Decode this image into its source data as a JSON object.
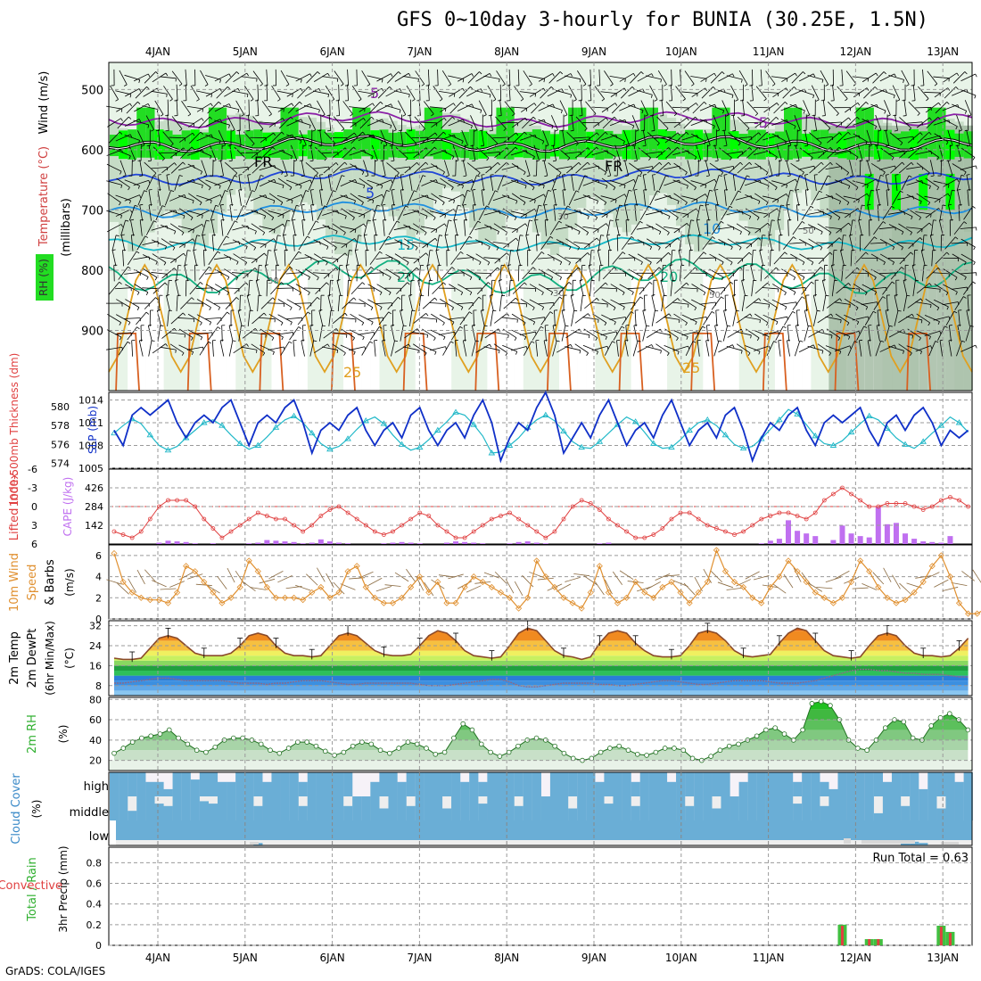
{
  "title": "GFS 0~10day 3-hourly for BUNIA (30.25E, 1.5N)",
  "credit": "GrADS: COLA/IGES",
  "colors": {
    "rh_light": "#e8f4e8",
    "rh_mid": "#c6dcc6",
    "rh_dark": "#9fb89f",
    "rh_bright": "#22dd22",
    "rh_neon": "#00ff00",
    "temp_purple": "#8a1fa6",
    "temp_blue": "#2046d8",
    "temp_lightblue": "#1e8fe0",
    "temp_cyan": "#15b8c8",
    "temp_green": "#12b080",
    "temp_orange": "#e0a020",
    "temp_darkorange": "#d86020",
    "freeze": "#000000",
    "slp": "#1030c8",
    "thick": "#20b8c8",
    "li": "#e04040",
    "cape": "#c070f0",
    "wind": "#e09030",
    "barb": "#8a6a40",
    "t2m": "#8a4a2a",
    "dewpt": "#8a6a8a",
    "rh2m": "#30b030",
    "cloud": "#6aaed6",
    "cloud_bg": "#eeeeee",
    "rain": "#40c040",
    "conv": "#e04040"
  },
  "chart_data": [
    {
      "panel": "upper-air",
      "type": "heatmap",
      "ylabel_parts": [
        "RH (%)",
        "Temperature (°C)",
        "Wind (m/s)"
      ],
      "yaxis_title": "(millibars)",
      "y_ticks": [
        500,
        600,
        700,
        800,
        900
      ],
      "ylim": [
        1000,
        455
      ],
      "x_labels": [
        "4JAN",
        "5JAN",
        "6JAN",
        "7JAN",
        "8JAN",
        "9JAN",
        "10JAN",
        "11JAN",
        "12JAN",
        "13JAN"
      ],
      "contours": [
        {
          "label": "-5",
          "level_mb": 550,
          "color": "temp_purple"
        },
        {
          "label": "FR",
          "level_mb": 590,
          "color": "freeze"
        },
        {
          "label": "5",
          "level_mb": 645,
          "color": "temp_blue"
        },
        {
          "label": "10",
          "level_mb": 700,
          "color": "temp_lightblue"
        },
        {
          "label": "15",
          "level_mb": 755,
          "color": "temp_cyan"
        },
        {
          "label": "20",
          "level_mb": 810,
          "color": "temp_green"
        },
        {
          "label": "25",
          "level_mb": 880,
          "color": "temp_orange"
        }
      ],
      "contour_labels_shown": [
        "5",
        "FR",
        "FR",
        "5",
        "15",
        "10",
        "20",
        "20",
        "-5",
        "25",
        "25"
      ],
      "rh_labels_shown": [
        "30",
        "30",
        "50",
        "30",
        "50"
      ]
    },
    {
      "panel": "slp-thickness",
      "type": "line",
      "ylabel_left": "1000-500mb Thickness (dm)",
      "ylabel_right": "SLP (mb)",
      "left_ticks": [
        574,
        576,
        578,
        580
      ],
      "right_ticks": [
        1005,
        1008,
        1011,
        1014
      ],
      "left_lim": [
        573.5,
        581.5
      ],
      "right_lim": [
        1005,
        1015
      ],
      "slp": [
        1010,
        1008,
        1012,
        1013,
        1012,
        1013,
        1014,
        1011,
        1009,
        1011,
        1012,
        1011,
        1013,
        1014,
        1011,
        1008,
        1011,
        1012,
        1011,
        1013,
        1014,
        1011,
        1007,
        1010,
        1011,
        1010,
        1012,
        1013,
        1010,
        1008,
        1010,
        1011,
        1009,
        1012,
        1013,
        1010,
        1008,
        1010,
        1011,
        1009,
        1012,
        1014,
        1011,
        1006,
        1009,
        1011,
        1010,
        1013,
        1015,
        1012,
        1007,
        1009,
        1011,
        1009,
        1012,
        1014,
        1011,
        1008,
        1010,
        1011,
        1009,
        1012,
        1014,
        1011,
        1008,
        1010,
        1011,
        1009,
        1012,
        1013,
        1010,
        1006,
        1009,
        1011,
        1010,
        1012,
        1013,
        1010,
        1008,
        1011,
        1012,
        1011,
        1012,
        1013,
        1010,
        1008,
        1011,
        1012,
        1010,
        1012,
        1013,
        1011,
        1008,
        1010,
        1009,
        1010
      ],
      "thickness": [
        577.2,
        578,
        578.7,
        578.2,
        577,
        575.9,
        575.4,
        575.8,
        576.7,
        577.5,
        578.3,
        578.6,
        578,
        577,
        576.1,
        575.5,
        575.9,
        576.8,
        577.8,
        578.6,
        579,
        578.3,
        577.2,
        576.1,
        575.5,
        575.8,
        576.6,
        577.6,
        578.5,
        578.9,
        578.2,
        577,
        576,
        575.4,
        575.7,
        576.5,
        577.5,
        578.4,
        579.4,
        579.1,
        578.1,
        576.9,
        575.1,
        575.2,
        575.9,
        576.7,
        577.8,
        578.6,
        579.1,
        578.5,
        577.4,
        576.3,
        575.7,
        575.6,
        576.3,
        577.2,
        578.1,
        578.9,
        578.4,
        577.3,
        576.1,
        575.6,
        575.7,
        576.5,
        577.5,
        578.3,
        578.6,
        578,
        577,
        576,
        575.6,
        575.8,
        576.6,
        577.6,
        578.6,
        579.7,
        579.2,
        578.1,
        576.9,
        576.1,
        575.9,
        576.4,
        577.3,
        578.2,
        579,
        578.6,
        577.7,
        576.7,
        576,
        575.6,
        576.3,
        577.2,
        578,
        578.9,
        578.3,
        577.3
      ]
    },
    {
      "panel": "lifted-index-cape",
      "type": "bar",
      "ylabel_left": "Lifted Index",
      "ylabel_right": "CAPE (J/kg)",
      "left_ticks": [
        "-6",
        "-3",
        "0",
        "3",
        "6"
      ],
      "right_ticks": [
        142,
        284,
        426
      ],
      "cape": [
        0,
        0,
        0,
        0,
        0,
        10,
        25,
        20,
        15,
        5,
        0,
        5,
        0,
        0,
        0,
        5,
        10,
        30,
        25,
        20,
        15,
        5,
        10,
        35,
        20,
        10,
        5,
        0,
        0,
        0,
        5,
        10,
        15,
        10,
        5,
        0,
        0,
        10,
        20,
        15,
        10,
        5,
        0,
        0,
        5,
        15,
        20,
        10,
        5,
        0,
        0,
        0,
        0,
        0,
        5,
        10,
        0,
        0,
        0,
        0,
        0,
        0,
        0,
        0,
        0,
        0,
        0,
        0,
        0,
        0,
        0,
        0,
        5,
        25,
        40,
        180,
        100,
        80,
        60,
        0,
        30,
        140,
        80,
        60,
        50,
        280,
        150,
        160,
        80,
        40,
        20,
        15,
        10,
        60,
        0,
        0
      ],
      "li": [
        4,
        4.5,
        5,
        4,
        2,
        0,
        -1,
        -1,
        -1,
        0,
        2,
        3.5,
        5,
        4,
        3,
        2,
        1,
        1.5,
        2,
        2,
        3,
        4,
        3,
        1.5,
        0.5,
        0,
        1,
        2,
        3,
        4,
        4.5,
        4,
        3,
        2,
        1,
        1.5,
        3,
        4,
        5,
        5,
        4,
        3,
        2,
        1.5,
        1,
        2,
        3,
        4,
        5,
        4,
        2,
        0,
        -1,
        -0.5,
        0.5,
        2,
        3,
        4,
        5,
        5,
        4.5,
        3.5,
        2,
        1,
        1,
        2,
        3,
        3.5,
        4,
        4.5,
        4,
        3,
        2,
        1.5,
        1,
        1,
        1.5,
        2,
        1,
        -1,
        -2,
        -3,
        -2,
        -1,
        0,
        0,
        -0.5,
        -0.5,
        -0.5,
        0,
        0.5,
        0,
        -1,
        -1.5,
        -1,
        0
      ]
    },
    {
      "panel": "10m-wind",
      "type": "line",
      "ylabel_parts": [
        "10m Wind",
        "Speed",
        "& Barbs"
      ],
      "yunit": "(m/s)",
      "y_ticks": [
        0,
        2,
        4,
        6
      ],
      "ylim": [
        0,
        7
      ],
      "speed": [
        6.2,
        3.5,
        2.5,
        2,
        1.8,
        1.8,
        1.5,
        2.5,
        5,
        4.5,
        3.5,
        2.5,
        1.5,
        2,
        3,
        5.5,
        4.5,
        3,
        2,
        2,
        2,
        1.8,
        2.5,
        3,
        2,
        2.5,
        4.5,
        5,
        3,
        2,
        1.5,
        1.5,
        2,
        3,
        4,
        2.5,
        3.5,
        1.5,
        1.5,
        3,
        4,
        3.5,
        3,
        2.5,
        2,
        1,
        2,
        5.5,
        4,
        3,
        2,
        1.5,
        1,
        2.5,
        5,
        2.5,
        1.5,
        2,
        3.5,
        2.5,
        2,
        3,
        3.5,
        2.5,
        1.5,
        2.5,
        3.5,
        6.5,
        4.5,
        3.5,
        3,
        2,
        1.5,
        3,
        4,
        5.5,
        4.5,
        3.5,
        2.5,
        2,
        1.5,
        2,
        3.5,
        5.5,
        4.5,
        3,
        2,
        1.5,
        1.8,
        2.5,
        3.5,
        5,
        6,
        4,
        1.5,
        0.5,
        0.5,
        1,
        2,
        4
      ]
    },
    {
      "panel": "2m-temp-dewpt",
      "type": "area",
      "ylabel_parts": [
        "2m Temp",
        "2m DewPt",
        "(6hr Min/Max)"
      ],
      "yunit": "(°C)",
      "y_ticks": [
        8,
        16,
        24,
        32
      ],
      "ylim": [
        4,
        34
      ],
      "temp_2m": [
        19,
        18.5,
        18.5,
        19,
        23,
        27,
        28,
        27,
        24,
        21,
        20,
        20,
        20,
        21,
        24,
        28,
        29,
        28,
        24,
        21,
        20,
        20,
        19.5,
        20,
        24,
        28,
        29,
        28,
        25,
        22,
        20.5,
        20,
        20,
        20.5,
        24,
        28,
        30,
        29,
        26,
        22,
        20,
        19.5,
        19,
        19.5,
        24,
        29,
        31,
        30,
        26,
        22,
        20,
        19.5,
        18.5,
        19.5,
        25,
        29,
        30,
        29,
        25,
        22,
        20,
        19.5,
        19.5,
        20,
        24,
        29,
        30,
        29,
        26,
        22,
        20,
        19.5,
        20,
        20.5,
        25,
        29,
        31,
        30,
        26,
        22,
        20,
        19.5,
        19,
        19.5,
        24,
        28,
        29,
        28,
        24,
        21,
        20,
        20,
        19.5,
        20,
        23,
        27,
        28,
        27,
        23,
        21,
        20,
        19,
        19,
        18.5,
        18,
        18.5,
        24
      ],
      "dewpt_2m": [
        9,
        9,
        9.5,
        10,
        10.5,
        11,
        11,
        10.5,
        10,
        10,
        10,
        10,
        10,
        9.5,
        9,
        9,
        9,
        8.5,
        9,
        9,
        9.5,
        10,
        10,
        10,
        9.5,
        9,
        8.5,
        8.5,
        9,
        9,
        9,
        9,
        9,
        9,
        8.5,
        8,
        8,
        8,
        8.5,
        9,
        9.5,
        10,
        10.5,
        10.5,
        9.5,
        8,
        7.5,
        7.5,
        8,
        8.5,
        9,
        9,
        9,
        9,
        8.5,
        8.5,
        8,
        8,
        8.5,
        9,
        9.5,
        10,
        10,
        9.5,
        9,
        8.5,
        8.5,
        9,
        9.5,
        10,
        10,
        10,
        10,
        9.5,
        9,
        9,
        9,
        9.5,
        10,
        11,
        12,
        13,
        14,
        14.5,
        14.5,
        14,
        14,
        13.5,
        13,
        13,
        12.5,
        12.5,
        12.5,
        12,
        11.5,
        11.5,
        11.5,
        12,
        12,
        12.5,
        13,
        13
      ]
    },
    {
      "panel": "2m-rh",
      "type": "area",
      "ylabel": "2m RH",
      "yunit": "(%)",
      "y_ticks": [
        20,
        40,
        60,
        80
      ],
      "ylim": [
        10,
        82
      ],
      "rh_2m": [
        27,
        32,
        38,
        42,
        44,
        46,
        50,
        42,
        36,
        30,
        28,
        33,
        40,
        42,
        42,
        40,
        36,
        30,
        27,
        32,
        38,
        38,
        34,
        29,
        25,
        28,
        34,
        38,
        36,
        30,
        27,
        32,
        38,
        36,
        32,
        26,
        28,
        42,
        56,
        50,
        36,
        28,
        24,
        28,
        34,
        40,
        42,
        40,
        34,
        27,
        22,
        20,
        22,
        28,
        32,
        34,
        30,
        26,
        25,
        28,
        32,
        32,
        30,
        22,
        20,
        24,
        30,
        34,
        36,
        40,
        44,
        50,
        52,
        46,
        40,
        50,
        76,
        78,
        74,
        60,
        40,
        32,
        30,
        40,
        52,
        60,
        58,
        42,
        40,
        54,
        62,
        66,
        60,
        50
      ],
      "extra_y_tick": 80
    },
    {
      "panel": "cloud-cover",
      "type": "bar",
      "ylabel": "Cloud Cover",
      "yunit": "(%)",
      "levels": [
        "high",
        "middle",
        "low"
      ],
      "high": [
        100,
        100,
        100,
        100,
        60,
        60,
        30,
        100,
        100,
        70,
        100,
        100,
        60,
        60,
        100,
        100,
        100,
        60,
        100,
        100,
        100,
        60,
        100,
        100,
        100,
        100,
        100,
        0,
        0,
        60,
        100,
        100,
        60,
        100,
        100,
        100,
        100,
        100,
        100,
        60,
        100,
        60,
        100,
        100,
        100,
        100,
        100,
        100,
        0,
        100,
        100,
        100,
        100,
        100,
        60,
        100,
        100,
        100,
        60,
        100,
        100,
        100,
        60,
        100,
        100,
        100,
        100,
        100,
        100,
        0,
        60,
        100,
        100,
        100,
        100,
        100,
        60,
        100,
        100,
        60,
        30,
        100,
        100,
        100,
        100,
        100,
        60,
        100,
        100,
        100,
        30,
        100,
        100,
        100,
        60,
        100
      ],
      "middle": [
        100,
        100,
        40,
        100,
        100,
        70,
        60,
        100,
        100,
        100,
        80,
        70,
        100,
        100,
        100,
        100,
        60,
        100,
        100,
        100,
        100,
        60,
        100,
        100,
        100,
        100,
        60,
        100,
        100,
        100,
        50,
        100,
        100,
        60,
        100,
        100,
        100,
        50,
        100,
        100,
        100,
        70,
        100,
        100,
        100,
        60,
        100,
        100,
        100,
        100,
        100,
        50,
        100,
        100,
        100,
        70,
        100,
        100,
        60,
        100,
        100,
        100,
        100,
        100,
        60,
        100,
        100,
        50,
        100,
        100,
        100,
        100,
        100,
        100,
        100,
        100,
        70,
        100,
        100,
        60,
        100,
        100,
        100,
        100,
        100,
        30,
        100,
        100,
        60,
        100,
        100,
        100,
        50,
        100,
        100,
        100
      ],
      "low": [
        0,
        0,
        0,
        0,
        0,
        0,
        0,
        0,
        0,
        0,
        0,
        0,
        0,
        0,
        0,
        0,
        10,
        0,
        0,
        0,
        0,
        0,
        0,
        0,
        0,
        0,
        0,
        0,
        0,
        0,
        0,
        0,
        0,
        0,
        0,
        0,
        0,
        0,
        0,
        0,
        0,
        0,
        0,
        0,
        0,
        0,
        0,
        0,
        0,
        0,
        0,
        0,
        0,
        0,
        0,
        0,
        0,
        0,
        0,
        0,
        0,
        0,
        0,
        0,
        0,
        0,
        0,
        0,
        0,
        0,
        0,
        0,
        0,
        0,
        0,
        0,
        0,
        0,
        0,
        0,
        0,
        0,
        0,
        0,
        0,
        0,
        0,
        0,
        10,
        15,
        10,
        0,
        0,
        0,
        0,
        0
      ]
    },
    {
      "panel": "precip",
      "type": "bar",
      "ylabel_parts": [
        "Total / Rain",
        "Convective"
      ],
      "ylabel_unit": "3hr Precip (mm)",
      "y_ticks": [
        "0",
        "0.2",
        "0.4",
        "0.6",
        "0.8"
      ],
      "ylim": [
        0,
        0.95
      ],
      "run_total": "Run Total = 0.63",
      "bars": [
        {
          "i": 81,
          "total": 0.2,
          "conv": 0.19
        },
        {
          "i": 84,
          "total": 0.06,
          "conv": 0.06
        },
        {
          "i": 85,
          "total": 0.06,
          "conv": 0.06
        },
        {
          "i": 92,
          "total": 0.19,
          "conv": 0.18
        },
        {
          "i": 93,
          "total": 0.13,
          "conv": 0.12
        }
      ],
      "x_labels": [
        "4JAN",
        "5JAN",
        "6JAN",
        "7JAN",
        "8JAN",
        "9JAN",
        "10JAN",
        "11JAN",
        "12JAN",
        "13JAN"
      ]
    }
  ]
}
